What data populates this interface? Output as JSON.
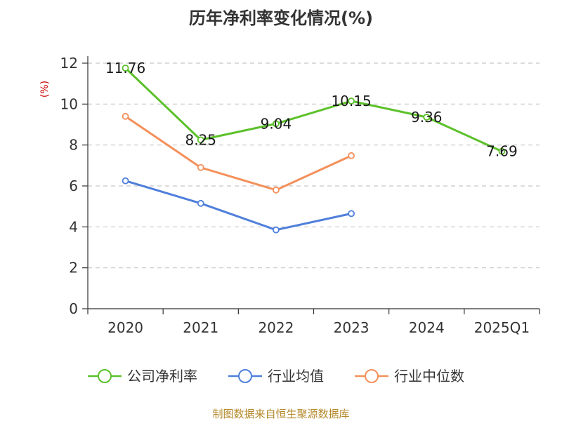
{
  "chart_data": {
    "type": "line",
    "title": "历年净利率变化情况(%)",
    "ylabel": "(%)",
    "categories": [
      "2020",
      "2021",
      "2022",
      "2023",
      "2024",
      "2025Q1"
    ],
    "ylim": [
      0,
      12
    ],
    "yticks": [
      0,
      2,
      4,
      6,
      8,
      10,
      12
    ],
    "grid": true,
    "legend_position": "bottom",
    "series": [
      {
        "name": "公司净利率",
        "color": "#5cc12b",
        "values": [
          11.76,
          8.25,
          9.04,
          10.15,
          9.36,
          7.69
        ],
        "labels": [
          "11.76",
          "8.25",
          "9.04",
          "10.15",
          "9.36",
          "7.69"
        ]
      },
      {
        "name": "行业均值",
        "color": "#4f7fdb",
        "values": [
          6.25,
          5.15,
          3.85,
          4.65,
          null,
          null
        ]
      },
      {
        "name": "行业中位数",
        "color": "#f4905a",
        "values": [
          9.4,
          6.9,
          5.8,
          7.48,
          null,
          null
        ]
      }
    ]
  },
  "source": "制图数据来自恒生聚源数据库"
}
